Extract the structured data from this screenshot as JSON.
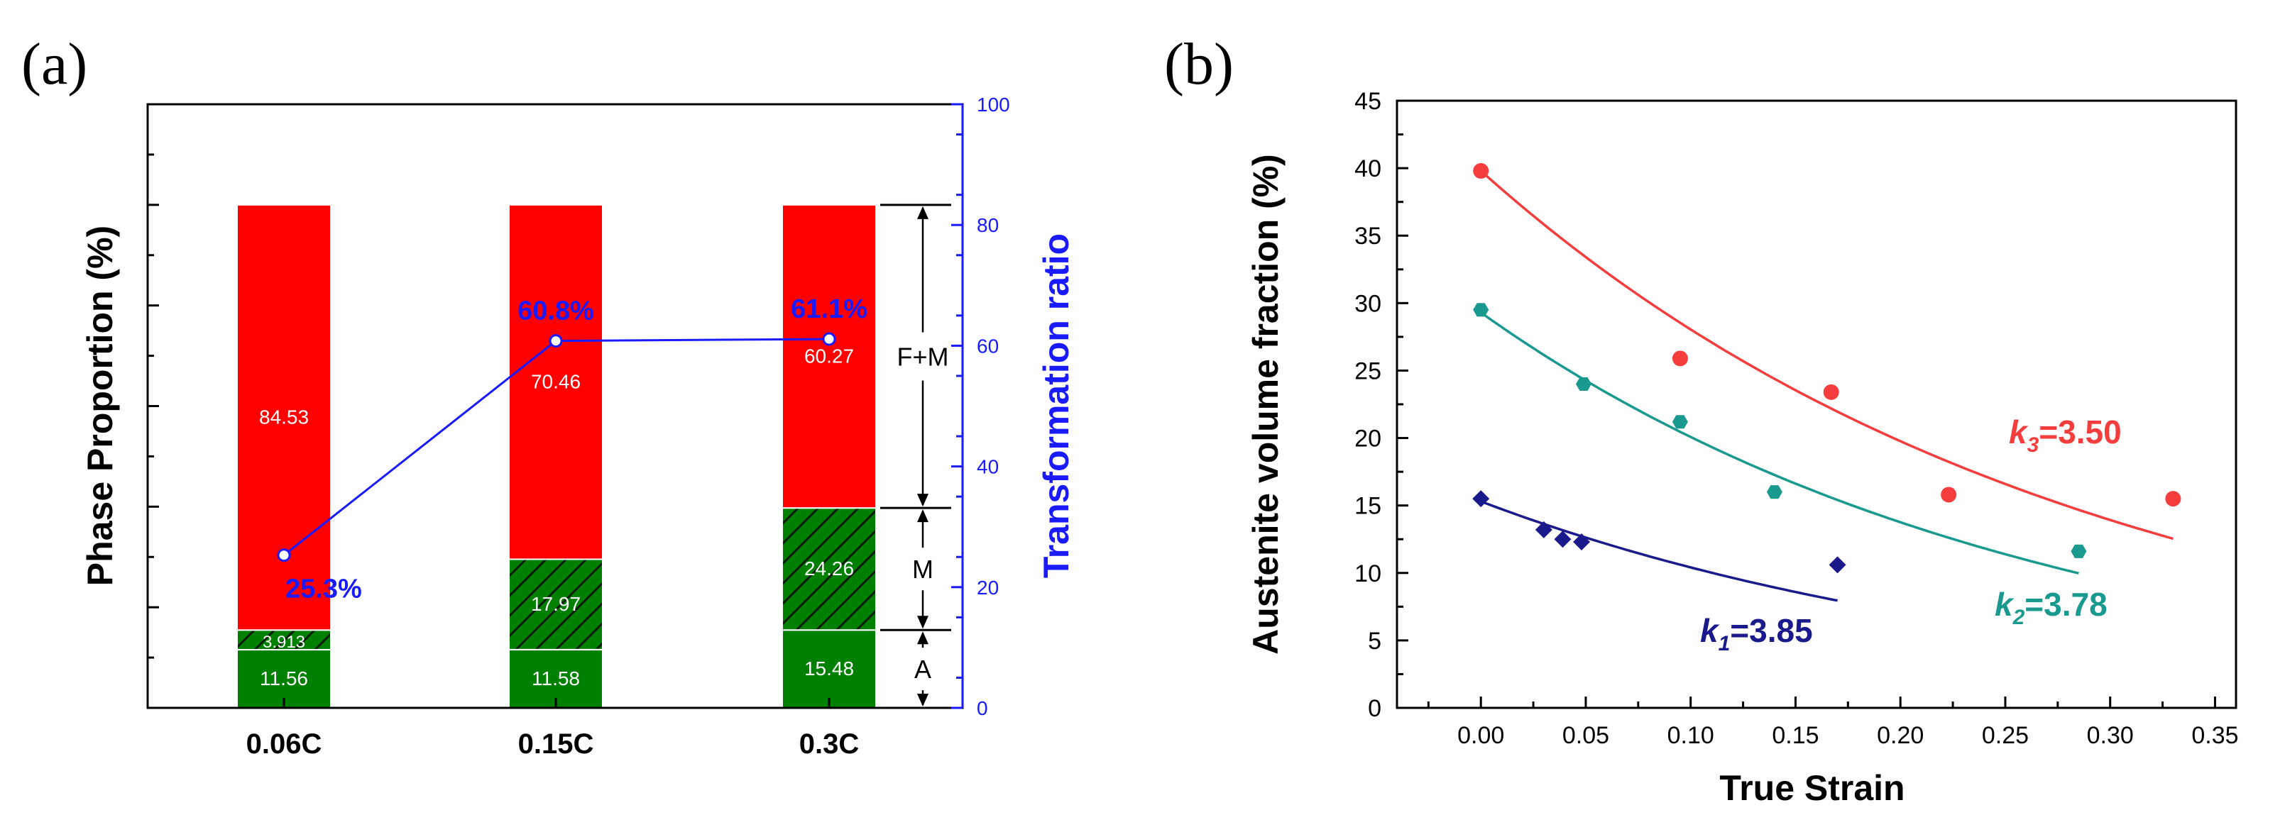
{
  "chart_data": [
    {
      "panel_label": "(a)",
      "type": "bar",
      "stacked": true,
      "categories": [
        "0.06C",
        "0.15C",
        "0.3C"
      ],
      "series": [
        {
          "name": "A",
          "values": [
            11.56,
            11.58,
            15.48
          ],
          "color": "#008000",
          "pattern": "solid",
          "labels": [
            "11.56",
            "11.58",
            "15.48"
          ]
        },
        {
          "name": "M",
          "values": [
            3.913,
            17.97,
            24.26
          ],
          "color": "#008000",
          "pattern": "hatched",
          "labels": [
            "3.913",
            "17.97",
            "24.26"
          ]
        },
        {
          "name": "F+M",
          "values": [
            84.53,
            70.46,
            60.27
          ],
          "color": "#ff0000",
          "pattern": "solid",
          "labels": [
            "84.53",
            "70.46",
            "60.27"
          ]
        }
      ],
      "ylabel": "Phase Proportion  (%)",
      "ylim": [
        0,
        120
      ],
      "y2": {
        "label": "Transformation ratio",
        "ylim": [
          0,
          100
        ],
        "ticks": [
          "0",
          "20",
          "40",
          "60",
          "80",
          "100"
        ],
        "color": "#1a1aff",
        "line_series": {
          "name": "Transformation ratio",
          "values": [
            25.3,
            60.8,
            61.1
          ],
          "labels": [
            "25.3%",
            "60.8%",
            "61.1%"
          ]
        }
      },
      "annotations": [
        {
          "text": "F+M",
          "span": [
            40,
            100
          ]
        },
        {
          "text": "M",
          "span": [
            15.48,
            39.74
          ]
        },
        {
          "text": "A",
          "span": [
            0,
            15.48
          ]
        }
      ]
    },
    {
      "panel_label": "(b)",
      "type": "scatter",
      "xlabel": "True Strain",
      "ylabel": "Austenite volume fraction (%)",
      "xlim": [
        -0.04,
        0.36
      ],
      "ylim": [
        0,
        45
      ],
      "xticks": [
        "0.00",
        "0.05",
        "0.10",
        "0.15",
        "0.20",
        "0.25",
        "0.30",
        "0.35"
      ],
      "yticks": [
        "0",
        "5",
        "10",
        "15",
        "20",
        "25",
        "30",
        "35",
        "40",
        "45"
      ],
      "series": [
        {
          "name": "k1",
          "k_label": "k",
          "k_sub": "1",
          "k_value": "=3.85",
          "color": "#1a1a8c",
          "marker": "diamond",
          "x": [
            0.0,
            0.03,
            0.039,
            0.048,
            0.17
          ],
          "y": [
            15.5,
            13.2,
            12.5,
            12.3,
            10.6
          ],
          "fit": {
            "y0": 15.3,
            "decay": 3.85,
            "x_end": 0.17
          }
        },
        {
          "name": "k2",
          "k_label": "k",
          "k_sub": "2",
          "k_value": "=3.78",
          "color": "#1a9a8f",
          "marker": "hexagon",
          "x": [
            0.0,
            0.049,
            0.095,
            0.14,
            0.285
          ],
          "y": [
            29.5,
            24.0,
            21.2,
            16.0,
            11.6
          ],
          "fit": {
            "y0": 29.3,
            "decay": 3.78,
            "x_end": 0.285
          }
        },
        {
          "name": "k3",
          "k_label": "k",
          "k_sub": "3",
          "k_value": "=3.50",
          "color": "#f53d3d",
          "marker": "circle",
          "x": [
            0.0,
            0.095,
            0.167,
            0.223,
            0.33
          ],
          "y": [
            39.8,
            25.9,
            23.4,
            15.8,
            15.5
          ],
          "fit": {
            "y0": 39.8,
            "decay": 3.5,
            "x_end": 0.33
          }
        }
      ]
    }
  ]
}
